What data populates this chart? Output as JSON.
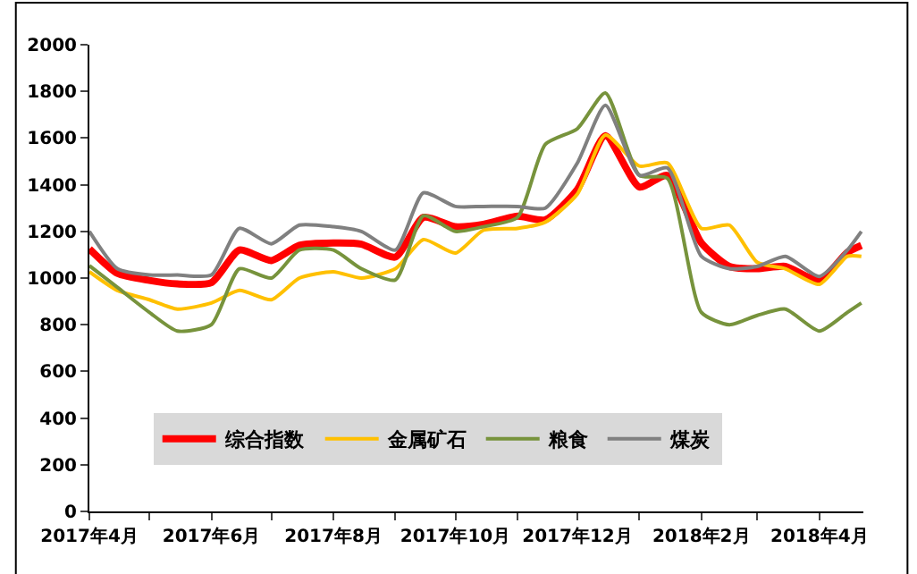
{
  "chart_data": {
    "type": "line",
    "x": [
      "2017-04-01",
      "2017-04-15",
      "2017-05-01",
      "2017-05-15",
      "2017-06-01",
      "2017-06-15",
      "2017-07-01",
      "2017-07-15",
      "2017-08-01",
      "2017-08-15",
      "2017-09-01",
      "2017-09-15",
      "2017-10-01",
      "2017-10-15",
      "2017-11-01",
      "2017-11-15",
      "2017-12-01",
      "2017-12-15",
      "2018-01-01",
      "2018-01-15",
      "2018-02-01",
      "2018-02-15",
      "2018-03-01",
      "2018-03-15",
      "2018-04-01",
      "2018-04-15",
      "2018-04-22"
    ],
    "series": [
      {
        "name": "综合指数",
        "color": "#ff0000",
        "values": [
          1125,
          1020,
          990,
          975,
          980,
          1120,
          1075,
          1140,
          1150,
          1145,
          1090,
          1260,
          1220,
          1230,
          1265,
          1250,
          1380,
          1610,
          1390,
          1440,
          1150,
          1050,
          1040,
          1050,
          990,
          1110,
          1140
        ]
      },
      {
        "name": "金属矿石",
        "color": "#ffc000",
        "values": [
          1027,
          947,
          907,
          867,
          893,
          947,
          907,
          1000,
          1027,
          1000,
          1040,
          1165,
          1107,
          1205,
          1213,
          1240,
          1360,
          1613,
          1480,
          1493,
          1213,
          1227,
          1067,
          1040,
          973,
          1093,
          1093
        ]
      },
      {
        "name": "粮食",
        "color": "#77933c",
        "values": [
          1053,
          960,
          853,
          773,
          800,
          1040,
          1000,
          1120,
          1120,
          1040,
          992,
          1267,
          1200,
          1220,
          1260,
          1573,
          1640,
          1793,
          1440,
          1427,
          853,
          800,
          840,
          867,
          773,
          853,
          893
        ]
      },
      {
        "name": "煤炭",
        "color": "#808080",
        "values": [
          1200,
          1040,
          1013,
          1013,
          1013,
          1213,
          1147,
          1227,
          1220,
          1200,
          1120,
          1365,
          1307,
          1307,
          1307,
          1300,
          1493,
          1740,
          1440,
          1472,
          1093,
          1040,
          1050,
          1093,
          1007,
          1120,
          1200
        ]
      }
    ],
    "xlim": [
      "2017-04-01",
      "2018-04-23"
    ],
    "xticks": [
      {
        "value": "2017-04-01",
        "label": "2017年4月"
      },
      {
        "value": "2017-05-01",
        "label": null
      },
      {
        "value": "2017-06-01",
        "label": "2017年6月"
      },
      {
        "value": "2017-07-01",
        "label": null
      },
      {
        "value": "2017-08-01",
        "label": "2017年8月"
      },
      {
        "value": "2017-09-01",
        "label": null
      },
      {
        "value": "2017-10-01",
        "label": "2017年10月"
      },
      {
        "value": "2017-11-01",
        "label": null
      },
      {
        "value": "2017-12-01",
        "label": "2017年12月"
      },
      {
        "value": "2018-01-01",
        "label": null
      },
      {
        "value": "2018-02-01",
        "label": "2018年2月"
      },
      {
        "value": "2018-03-01",
        "label": null
      },
      {
        "value": "2018-04-01",
        "label": "2018年4月"
      }
    ],
    "ylim": [
      0,
      2000
    ],
    "yticks": [
      0,
      200,
      400,
      600,
      800,
      1000,
      1200,
      1400,
      1600,
      1800,
      2000
    ],
    "legend": "bottom",
    "marker": "none",
    "line_style": "solid"
  }
}
